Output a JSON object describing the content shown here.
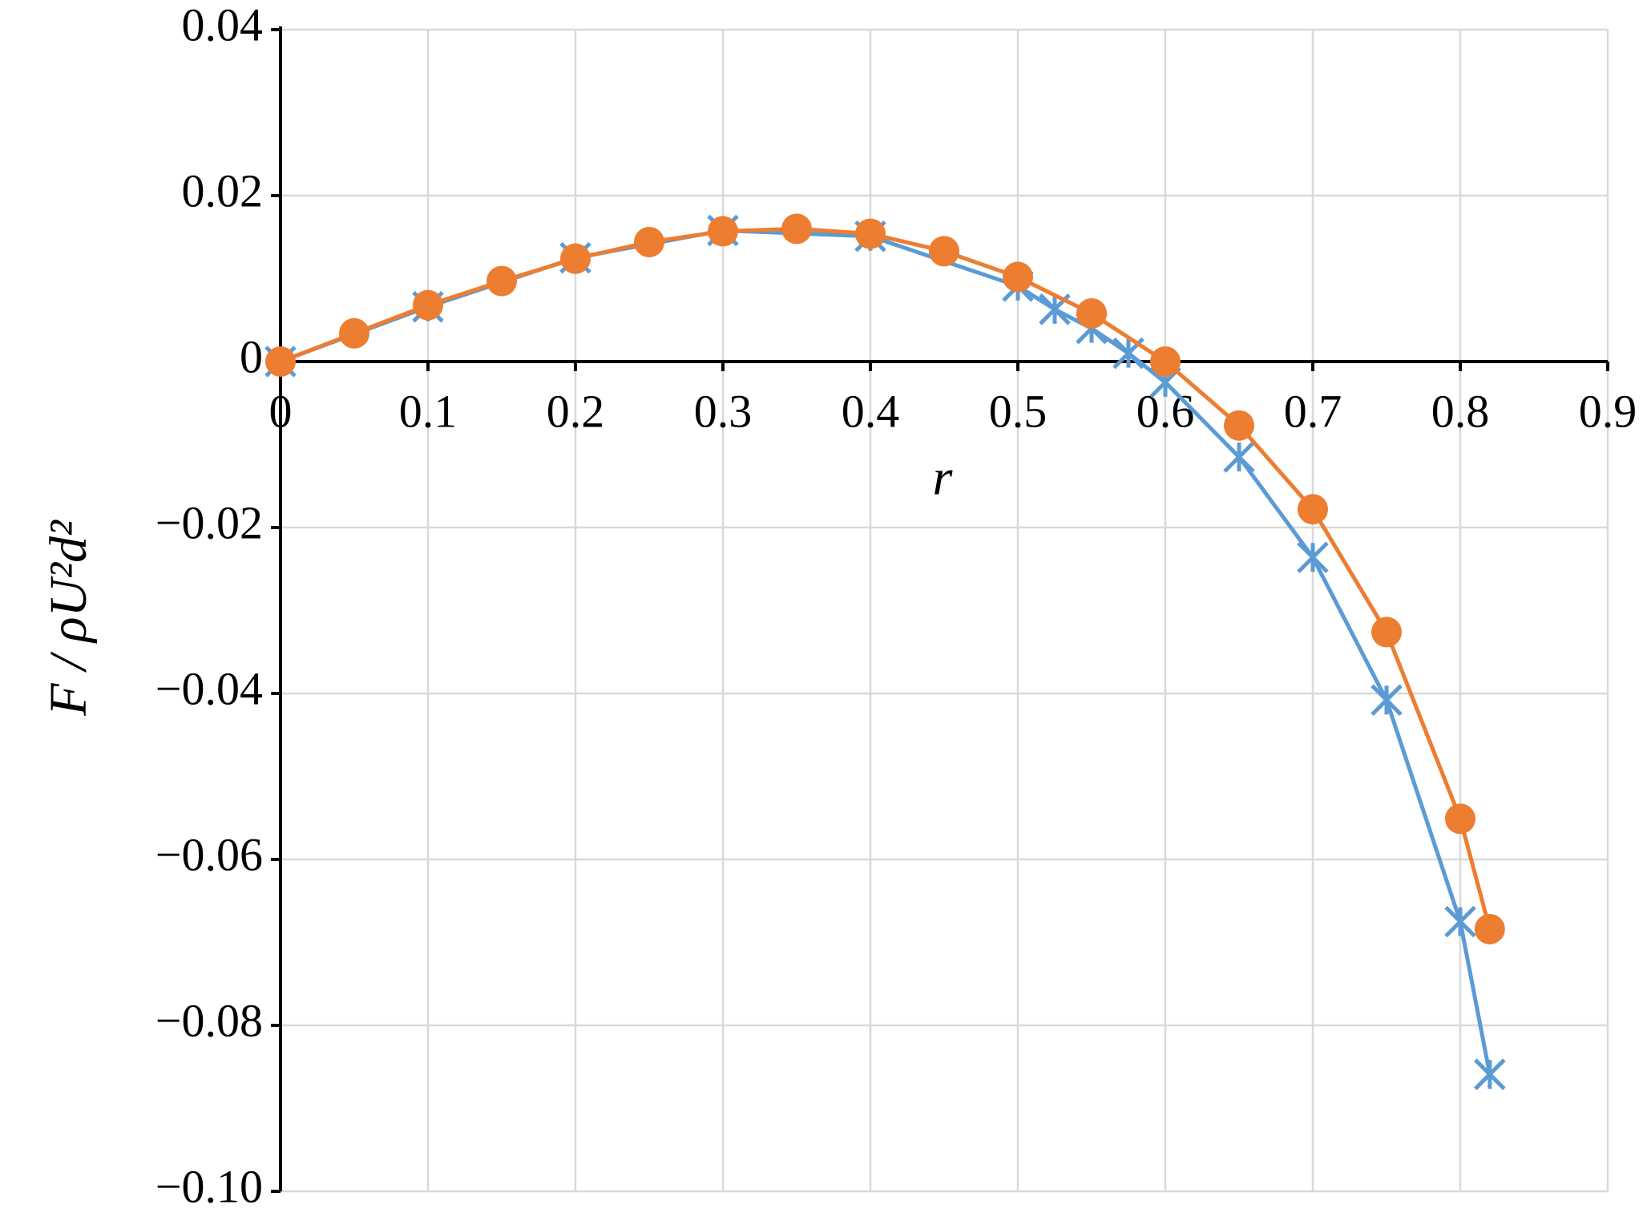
{
  "chart_data": {
    "type": "line",
    "x_label": "r",
    "y_label": "F / ρU²d²",
    "xlim": [
      0,
      0.9
    ],
    "ylim": [
      -0.1,
      0.04
    ],
    "xticks": [
      0,
      0.1,
      0.2,
      0.3,
      0.4,
      0.5,
      0.6,
      0.7,
      0.8,
      0.9
    ],
    "yticks": [
      {
        "value": -0.1,
        "label": "−0.10"
      },
      {
        "value": -0.08,
        "label": "−0.08"
      },
      {
        "value": -0.06,
        "label": "−0.06"
      },
      {
        "value": -0.04,
        "label": "−0.04"
      },
      {
        "value": -0.02,
        "label": "−0.02"
      },
      0,
      0.02,
      0.04
    ],
    "grid": true,
    "series": [
      {
        "color": "#5b9bd5",
        "marker": "star",
        "x": [
          0,
          0.1,
          0.2,
          0.3,
          0.4,
          0.5,
          0.525,
          0.55,
          0.575,
          0.6,
          0.65,
          0.7,
          0.75,
          0.8,
          0.82
        ],
        "values": [
          0,
          0.0066,
          0.0125,
          0.0158,
          0.0151,
          0.0091,
          0.0063,
          0.004,
          0.001,
          -0.0025,
          -0.0115,
          -0.0236,
          -0.0408,
          -0.0675,
          -0.0859
        ]
      },
      {
        "color": "#ed7d31",
        "marker": "circle",
        "x": [
          0,
          0.05,
          0.1,
          0.15,
          0.2,
          0.25,
          0.3,
          0.35,
          0.4,
          0.45,
          0.5,
          0.55,
          0.6,
          0.65,
          0.7,
          0.75,
          0.8,
          0.82
        ],
        "values": [
          0,
          0.0034,
          0.0068,
          0.0097,
          0.0124,
          0.0144,
          0.0157,
          0.016,
          0.0154,
          0.0133,
          0.0102,
          0.0058,
          0,
          -0.0077,
          -0.0178,
          -0.0326,
          -0.0551,
          -0.0684
        ]
      }
    ]
  }
}
